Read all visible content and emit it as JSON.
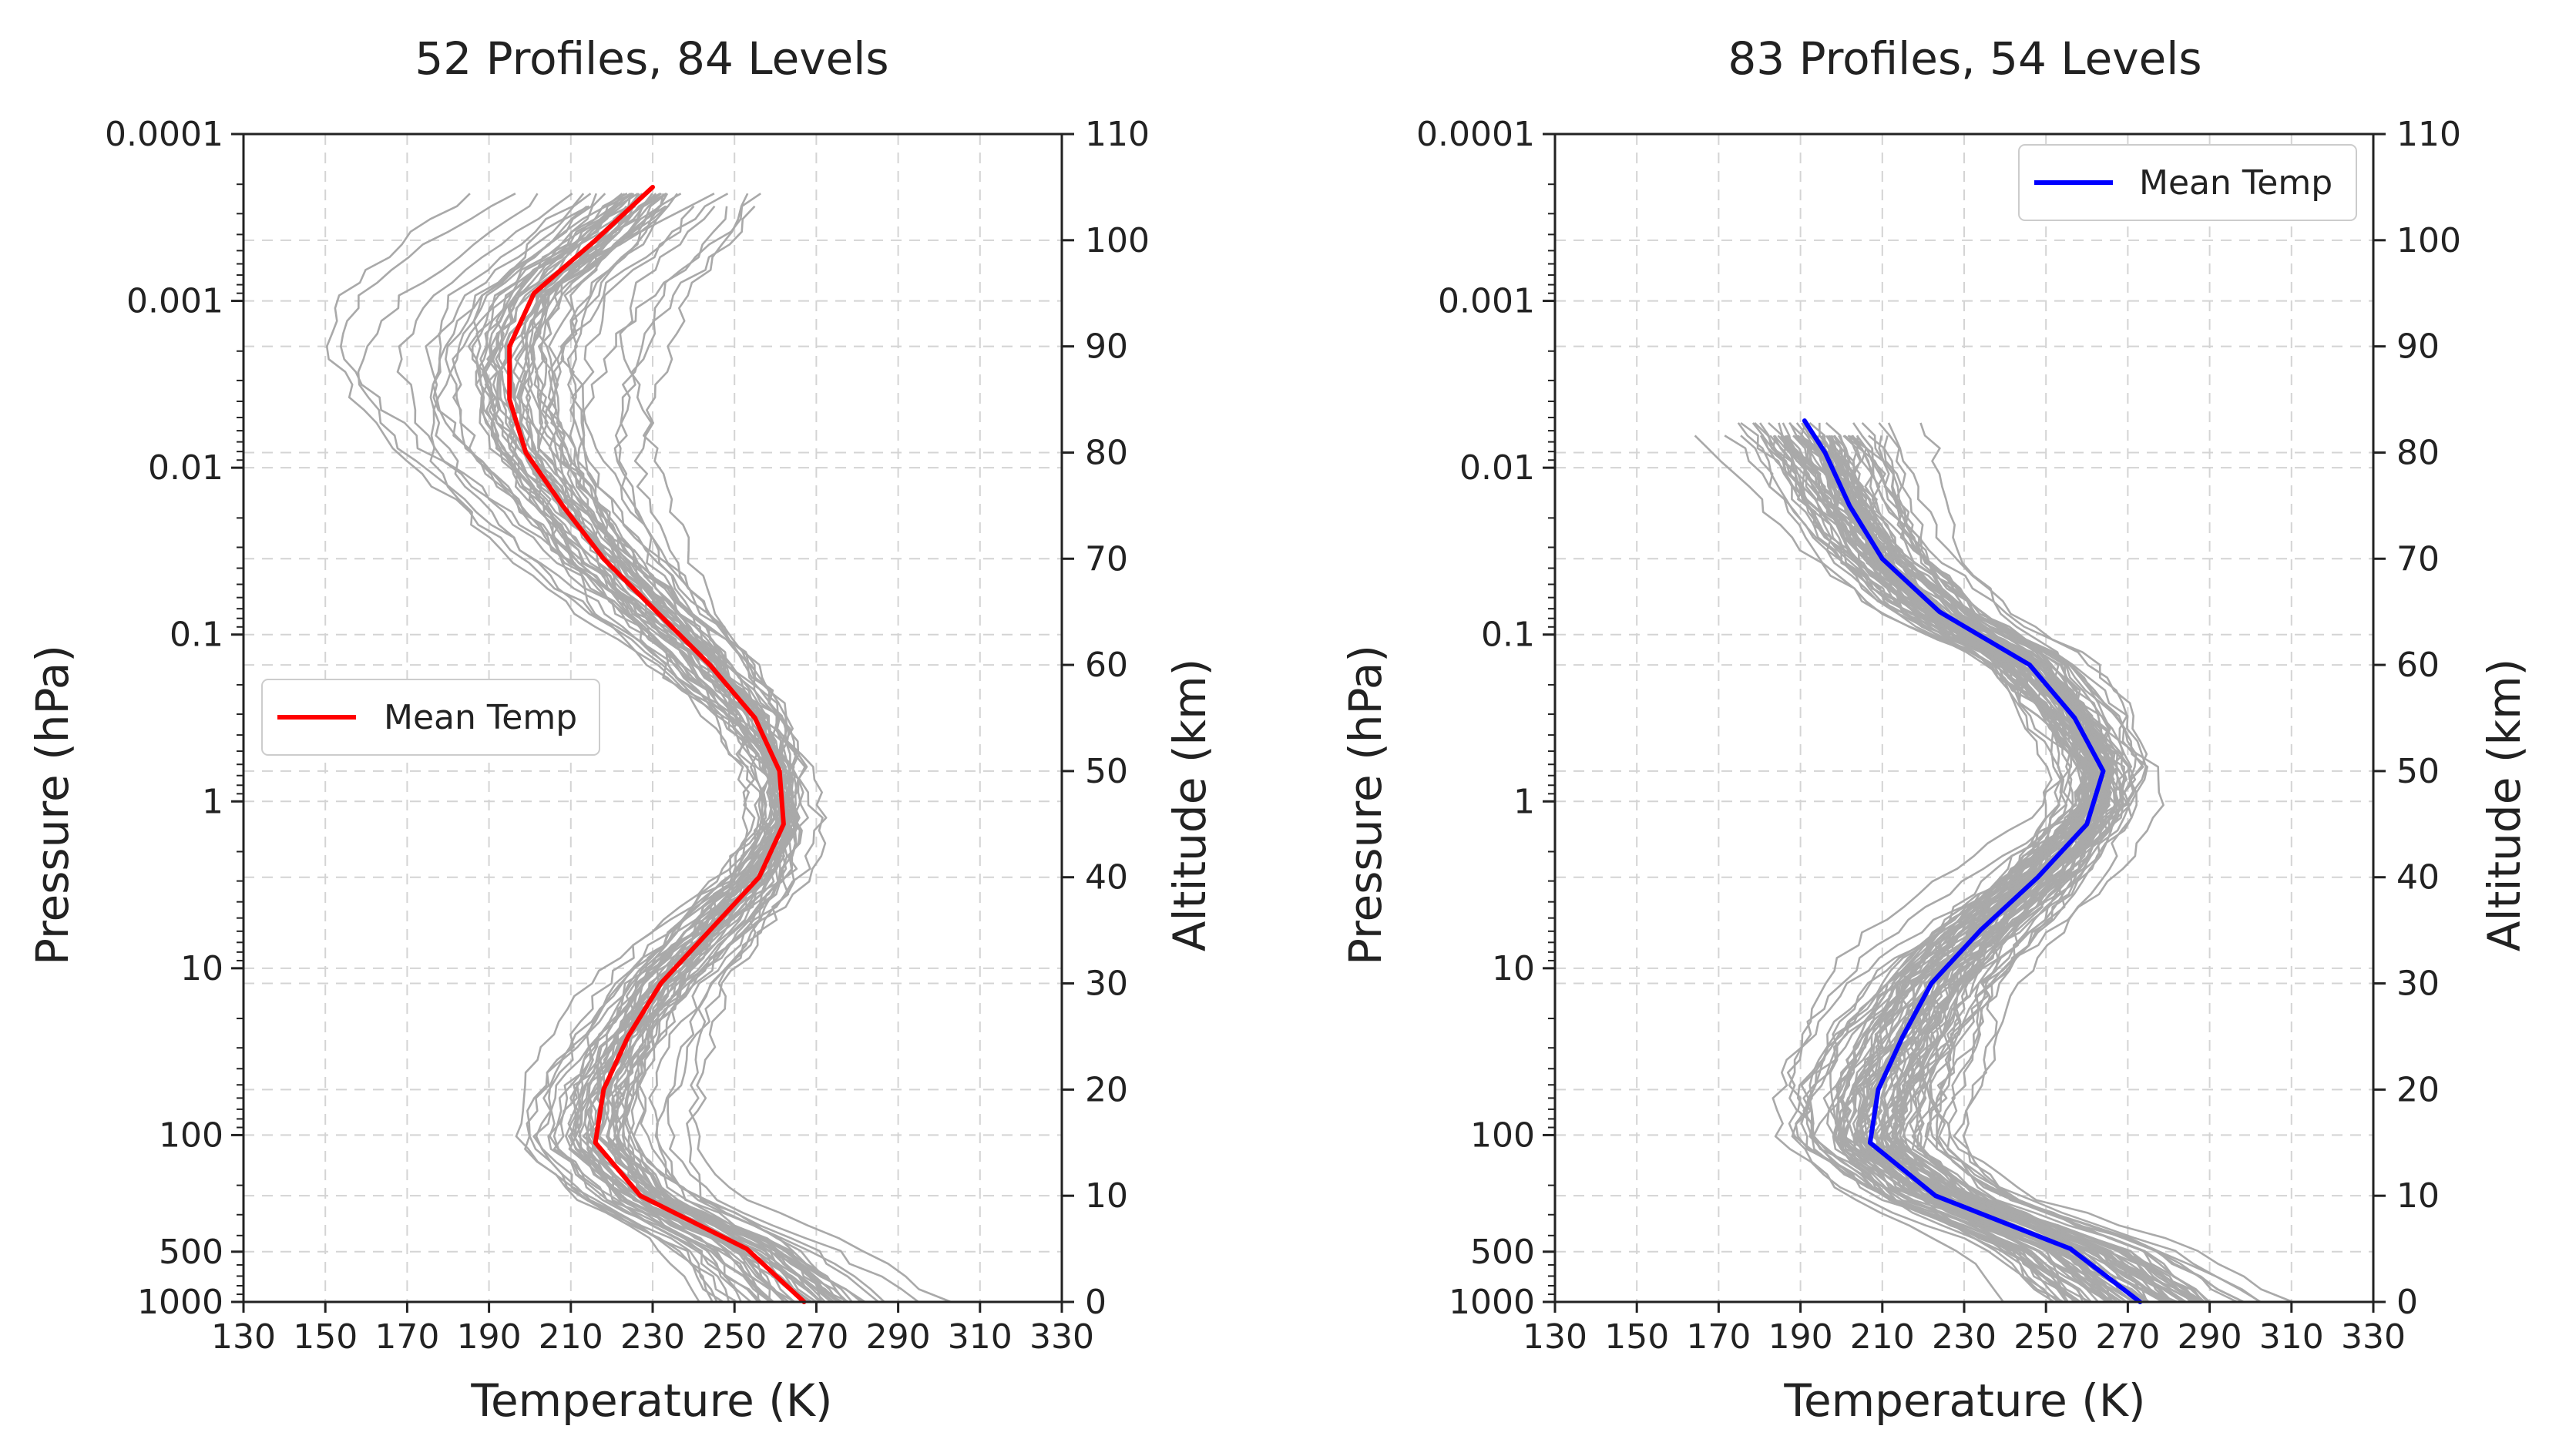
{
  "figure": {
    "panels": 2
  },
  "colors": {
    "profile": "#a9a9a9",
    "grid": "#d4d4d4",
    "axis": "#222222",
    "legend_border": "#cccccc"
  },
  "chart_data": [
    {
      "type": "line",
      "title": "52 Profiles, 84 Levels",
      "xlabel": "Temperature (K)",
      "ylabel": "Pressure (hPa)",
      "y2label": "Altitude (km)",
      "xlim": [
        130,
        330
      ],
      "x_ticks": [
        130,
        150,
        170,
        190,
        210,
        230,
        250,
        270,
        290,
        310,
        330
      ],
      "yscale": "log-inverted",
      "ylim": [
        1000,
        0.0001
      ],
      "y_ticks": [
        {
          "value": 0.0001,
          "label": "0.0001"
        },
        {
          "value": 0.001,
          "label": "0.001"
        },
        {
          "value": 0.01,
          "label": "0.01"
        },
        {
          "value": 0.1,
          "label": "0.1"
        },
        {
          "value": 1,
          "label": "1"
        },
        {
          "value": 10,
          "label": "10"
        },
        {
          "value": 100,
          "label": "100"
        },
        {
          "value": 500,
          "label": "500"
        },
        {
          "value": 1000,
          "label": "1000"
        }
      ],
      "y2lim": [
        0,
        110
      ],
      "y2_ticks": [
        0,
        10,
        20,
        30,
        40,
        50,
        60,
        70,
        80,
        90,
        100,
        110
      ],
      "legend": {
        "label": "Mean Temp",
        "placement": "center-left"
      },
      "profile_count": 52,
      "profile_color": "#a9a9a9",
      "profile_top_alt_km": 105,
      "mean_color": "#ff0000",
      "mean_profile": {
        "altitude_km": [
          0,
          5,
          10,
          15,
          20,
          25,
          30,
          35,
          40,
          45,
          50,
          55,
          60,
          65,
          70,
          75,
          80,
          85,
          90,
          95,
          100,
          105
        ],
        "temperature_K": [
          267,
          253,
          227,
          216,
          218,
          224,
          232,
          244,
          256,
          262,
          261,
          255,
          244,
          231,
          218,
          208,
          199,
          195,
          195,
          201,
          216,
          230
        ]
      },
      "spread_profile": {
        "altitude_km": [
          0,
          5,
          10,
          15,
          20,
          25,
          30,
          35,
          40,
          45,
          50,
          55,
          60,
          65,
          70,
          75,
          80,
          85,
          90,
          95,
          100,
          105
        ],
        "temperature_K_sigma": [
          12,
          10,
          9,
          11,
          11,
          10,
          10,
          11,
          11,
          9,
          9,
          11,
          12,
          12,
          12,
          12,
          13,
          14,
          15,
          15,
          15,
          14
        ]
      }
    },
    {
      "type": "line",
      "title": "83 Profiles, 54 Levels",
      "xlabel": "Temperature (K)",
      "ylabel": "Pressure (hPa)",
      "y2label": "Altitude (km)",
      "xlim": [
        130,
        330
      ],
      "x_ticks": [
        130,
        150,
        170,
        190,
        210,
        230,
        250,
        270,
        290,
        310,
        330
      ],
      "yscale": "log-inverted",
      "ylim": [
        1000,
        0.0001
      ],
      "y_ticks": [
        {
          "value": 0.0001,
          "label": "0.0001"
        },
        {
          "value": 0.001,
          "label": "0.001"
        },
        {
          "value": 0.01,
          "label": "0.01"
        },
        {
          "value": 0.1,
          "label": "0.1"
        },
        {
          "value": 1,
          "label": "1"
        },
        {
          "value": 10,
          "label": "10"
        },
        {
          "value": 100,
          "label": "100"
        },
        {
          "value": 500,
          "label": "500"
        },
        {
          "value": 1000,
          "label": "1000"
        }
      ],
      "y2lim": [
        0,
        110
      ],
      "y2_ticks": [
        0,
        10,
        20,
        30,
        40,
        50,
        60,
        70,
        80,
        90,
        100,
        110
      ],
      "legend": {
        "label": "Mean Temp",
        "placement": "upper-right"
      },
      "profile_count": 83,
      "profile_color": "#a9a9a9",
      "profile_top_alt_km": 83,
      "mean_color": "#0000ff",
      "mean_profile": {
        "altitude_km": [
          0,
          5,
          10,
          15,
          20,
          25,
          30,
          35,
          40,
          45,
          50,
          55,
          60,
          65,
          70,
          75,
          80,
          83
        ],
        "temperature_K": [
          273,
          256,
          223,
          207,
          209,
          215,
          222,
          234,
          248,
          260,
          264,
          257,
          246,
          224,
          210,
          202,
          196,
          191
        ]
      },
      "spread_profile": {
        "altitude_km": [
          0,
          5,
          10,
          15,
          20,
          25,
          30,
          35,
          40,
          45,
          50,
          55,
          60,
          65,
          70,
          75,
          80,
          83
        ],
        "temperature_K_sigma": [
          14,
          12,
          10,
          11,
          13,
          14,
          14,
          15,
          15,
          14,
          14,
          13,
          11,
          10,
          9,
          9,
          10,
          10
        ]
      }
    }
  ]
}
